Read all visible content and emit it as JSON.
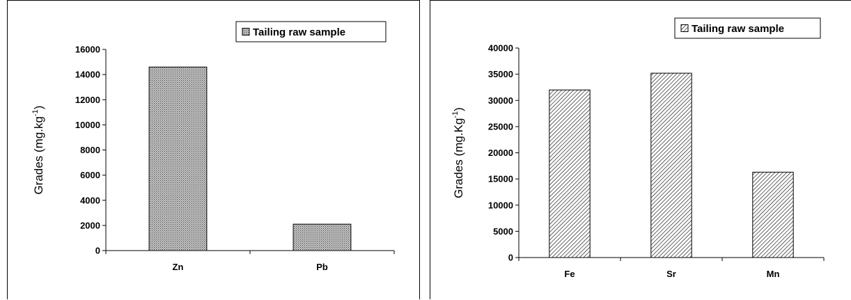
{
  "chart_data": [
    {
      "type": "bar",
      "categories": [
        "Zn",
        "Pb"
      ],
      "series": [
        {
          "name": "Tailing raw sample",
          "values": [
            14600,
            2100
          ]
        }
      ],
      "ylabel_text": "Grades (mg.kg",
      "ylabel_sup": "-1",
      "ylabel_close": ")",
      "ylim": [
        0,
        16000
      ],
      "yticks": [
        0,
        2000,
        4000,
        6000,
        8000,
        10000,
        12000,
        14000,
        16000
      ],
      "legend": "top-right",
      "pattern": "crosshatch",
      "grid": false
    },
    {
      "type": "bar",
      "categories": [
        "Fe",
        "Sr",
        "Mn"
      ],
      "series": [
        {
          "name": "Tailing raw sample",
          "values": [
            32000,
            35200,
            16300
          ]
        }
      ],
      "ylabel_text": "Grades (mg.Kg",
      "ylabel_sup": "-1",
      "ylabel_close": ")",
      "ylim": [
        0,
        40000
      ],
      "yticks": [
        0,
        5000,
        10000,
        15000,
        20000,
        25000,
        30000,
        35000,
        40000
      ],
      "legend": "top-right",
      "pattern": "diagonal",
      "grid": false
    }
  ]
}
